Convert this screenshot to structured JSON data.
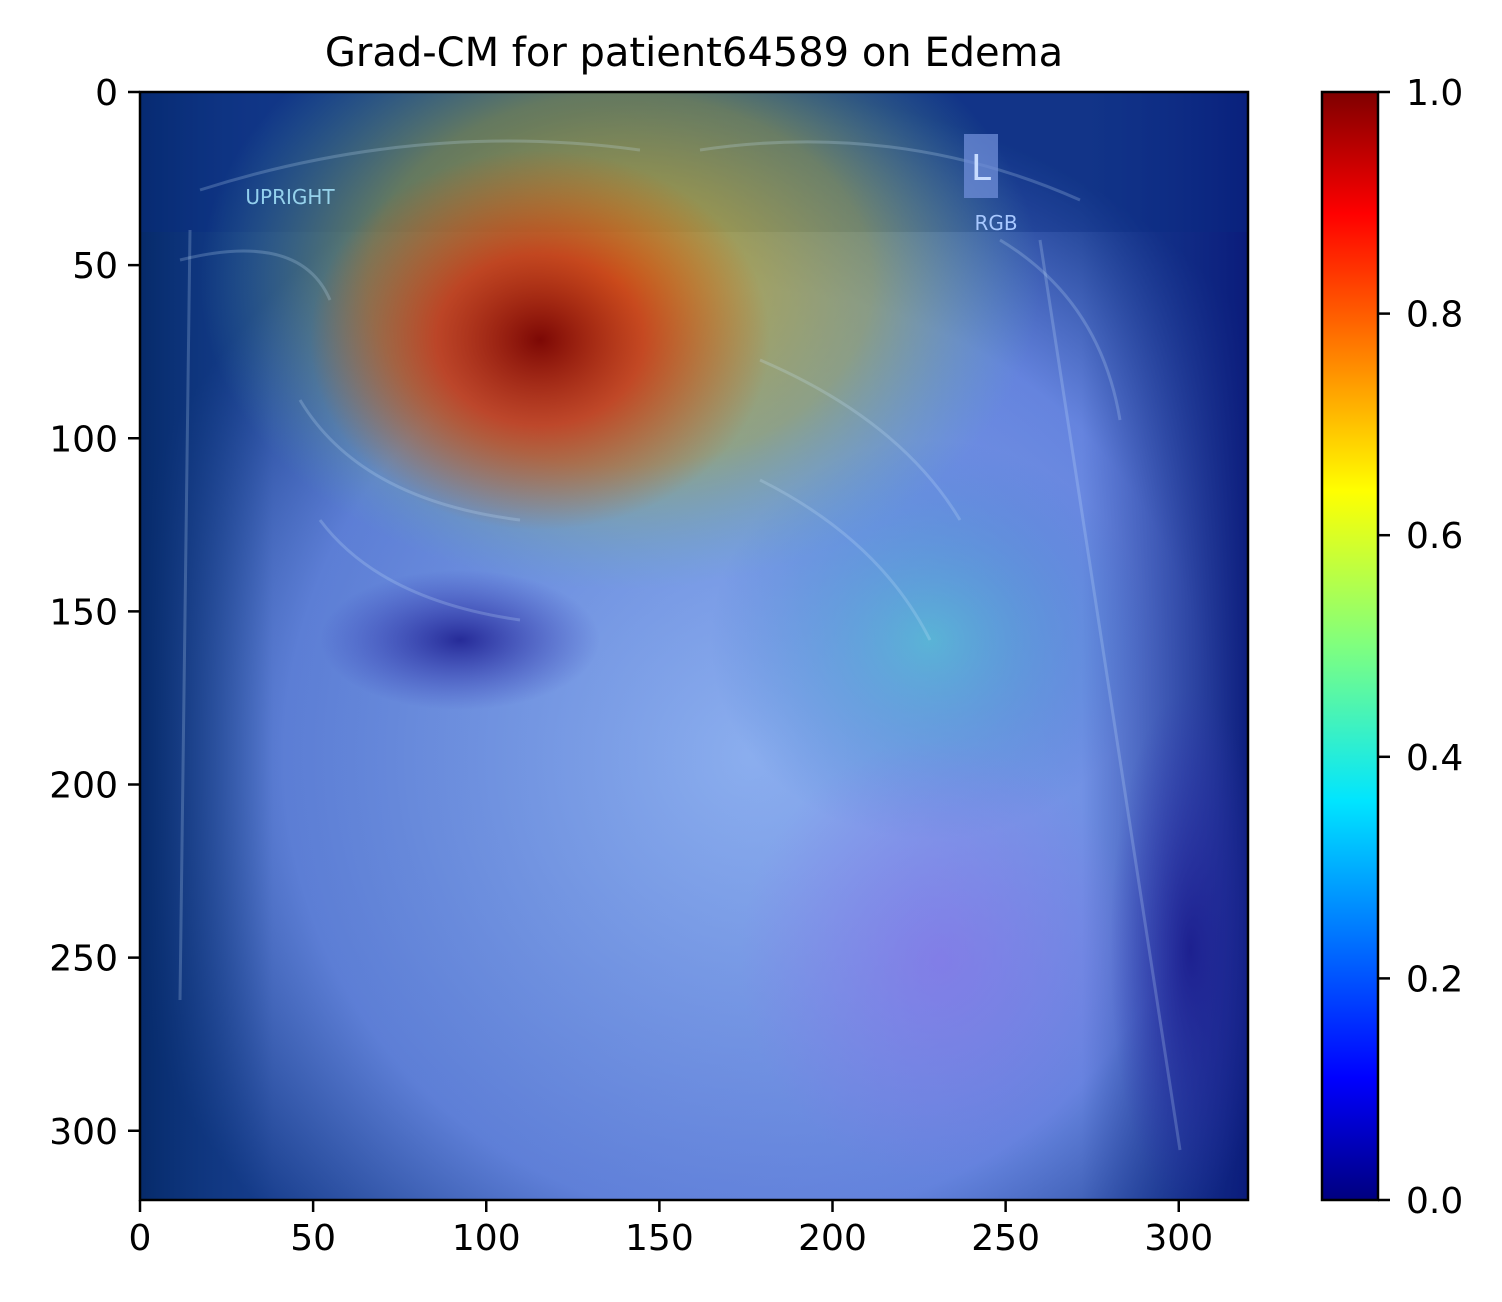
{
  "chart_data": {
    "type": "heatmap",
    "title": "Grad-CM for patient64589 on Edema",
    "xlabel": "",
    "ylabel": "",
    "xlim": [
      0,
      320
    ],
    "ylim": [
      320,
      0
    ],
    "x_ticks": [
      0,
      50,
      100,
      150,
      200,
      250,
      300
    ],
    "y_ticks": [
      0,
      50,
      100,
      150,
      200,
      250,
      300
    ],
    "colormap": "jet",
    "colorbar": {
      "range": [
        0.0,
        1.0
      ],
      "ticks": [
        "0.0",
        "0.2",
        "0.4",
        "0.6",
        "0.8",
        "1.0"
      ],
      "colors": [
        "#00007f",
        "#0000ff",
        "#007fff",
        "#00ffff",
        "#7fff7f",
        "#ffff00",
        "#ff7f00",
        "#ff0000",
        "#7f0000"
      ]
    },
    "overlay_labels": [
      "L",
      "RGB",
      "UPRIGHT"
    ],
    "activation_peak": {
      "x": 112,
      "y": 78,
      "value": 1.0
    },
    "activation_regions": [
      {
        "x": 112,
        "y": 78,
        "value": 1.0
      },
      {
        "x": 140,
        "y": 40,
        "value": 0.7
      },
      {
        "x": 150,
        "y": 110,
        "value": 0.55
      },
      {
        "x": 240,
        "y": 140,
        "value": 0.35
      },
      {
        "x": 110,
        "y": 180,
        "value": 0.05
      },
      {
        "x": 220,
        "y": 260,
        "value": 0.1
      }
    ]
  }
}
